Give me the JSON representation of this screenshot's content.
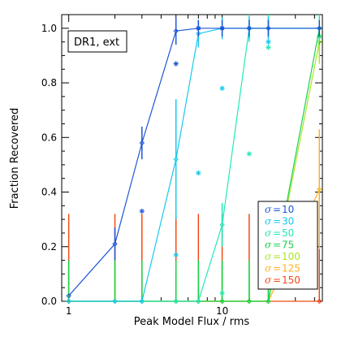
{
  "chart_data": {
    "type": "line",
    "xscale": "log",
    "xlim": [
      0.9,
      45
    ],
    "ylim": [
      0,
      1.05
    ],
    "xlabel": "Peak Model Flux / rms",
    "ylabel": "Fraction Recovered",
    "xticks": [
      {
        "v": 1,
        "label": "1"
      },
      {
        "v": 10,
        "label": "10"
      }
    ],
    "yticks": [
      {
        "v": 0.0,
        "label": "0.0"
      },
      {
        "v": 0.2,
        "label": "0.2"
      },
      {
        "v": 0.4,
        "label": "0.4"
      },
      {
        "v": 0.6,
        "label": "0.6"
      },
      {
        "v": 0.8,
        "label": "0.8"
      },
      {
        "v": 1.0,
        "label": "1.0"
      }
    ],
    "annotation": "DR1, ext",
    "legend_position": "lower-right",
    "series": [
      {
        "name": "10",
        "color": "#1f57d6",
        "x": [
          1,
          2,
          3,
          5,
          7,
          10,
          15,
          20,
          43
        ],
        "y": [
          0.02,
          0.21,
          0.58,
          0.99,
          1.0,
          1.0,
          1.0,
          1.0,
          1.0
        ],
        "err": [
          0,
          0.06,
          0.06,
          0.05,
          0.03,
          0.03,
          0.03,
          0.03,
          0.03
        ],
        "alt_x": [
          3,
          5,
          7,
          10
        ],
        "alt_y": [
          0.33,
          0.87,
          1.0,
          1.0
        ]
      },
      {
        "name": "30",
        "color": "#19c9f0",
        "x": [
          1,
          2,
          3,
          5,
          7,
          10,
          15,
          20,
          43
        ],
        "y": [
          0.0,
          0.0,
          0.0,
          0.52,
          0.98,
          1.0,
          1.0,
          1.0,
          1.0
        ],
        "err": [
          0,
          0,
          0,
          0.22,
          0.05,
          0.04,
          0.04,
          0.04,
          0.03
        ],
        "alt_x": [
          5,
          7,
          10,
          15,
          20
        ],
        "alt_y": [
          0.17,
          0.47,
          0.78,
          1.0,
          0.95
        ]
      },
      {
        "name": "50",
        "color": "#22e8b5",
        "x": [
          1,
          2,
          3,
          5,
          7,
          10,
          15,
          20,
          43
        ],
        "y": [
          0.0,
          0.0,
          0.0,
          0.0,
          0.0,
          0.28,
          1.0,
          1.0,
          1.0
        ],
        "err": [
          0,
          0,
          0,
          0,
          0,
          0.08,
          0.05,
          0.05,
          0.05
        ],
        "alt_x": [
          10,
          15,
          20
        ],
        "alt_y": [
          0.03,
          0.54,
          0.93
        ]
      },
      {
        "name": "75",
        "color": "#18d24e",
        "x": [
          1,
          2,
          3,
          5,
          7,
          10,
          15,
          20,
          43
        ],
        "y": [
          0.0,
          0.0,
          0.0,
          0.0,
          0.0,
          0.0,
          0.0,
          0.0,
          1.0
        ],
        "err": [
          0.15,
          0.15,
          0.15,
          0.15,
          0.15,
          0.15,
          0.15,
          0.15,
          0.06
        ],
        "alt_x": [
          43
        ],
        "alt_y": [
          0.97
        ]
      },
      {
        "name": "100",
        "color": "#a9e624",
        "x": [
          1,
          2,
          3,
          5,
          7,
          10,
          15,
          20,
          43
        ],
        "y": [
          0.0,
          0.0,
          0.0,
          0.0,
          0.0,
          0.0,
          0.0,
          0.0,
          0.95
        ],
        "err": [
          0.13,
          0.13,
          0.13,
          0.13,
          0.13,
          0.13,
          0.13,
          0.13,
          0.08
        ],
        "alt_x": [],
        "alt_y": []
      },
      {
        "name": "125",
        "color": "#ffb21c",
        "x": [
          1,
          2,
          3,
          5,
          7,
          10,
          15,
          20,
          43
        ],
        "y": [
          0.0,
          0.0,
          0.0,
          0.0,
          0.0,
          0.0,
          0.0,
          0.0,
          0.41
        ],
        "err": [
          0.1,
          0.1,
          0.1,
          0.1,
          0.1,
          0.1,
          0.1,
          0.1,
          0.22
        ],
        "alt_x": [],
        "alt_y": []
      },
      {
        "name": "150",
        "color": "#f24a14",
        "x": [
          1,
          2,
          3,
          5,
          7,
          10,
          15,
          20,
          43
        ],
        "y": [
          0.0,
          0.0,
          0.0,
          0.0,
          0.0,
          0.0,
          0.0,
          0.0,
          0.0
        ],
        "err": [
          0.32,
          0.32,
          0.32,
          0.32,
          0.32,
          0.32,
          0.32,
          0.32,
          0.32
        ],
        "alt_x": [],
        "alt_y": []
      }
    ]
  }
}
